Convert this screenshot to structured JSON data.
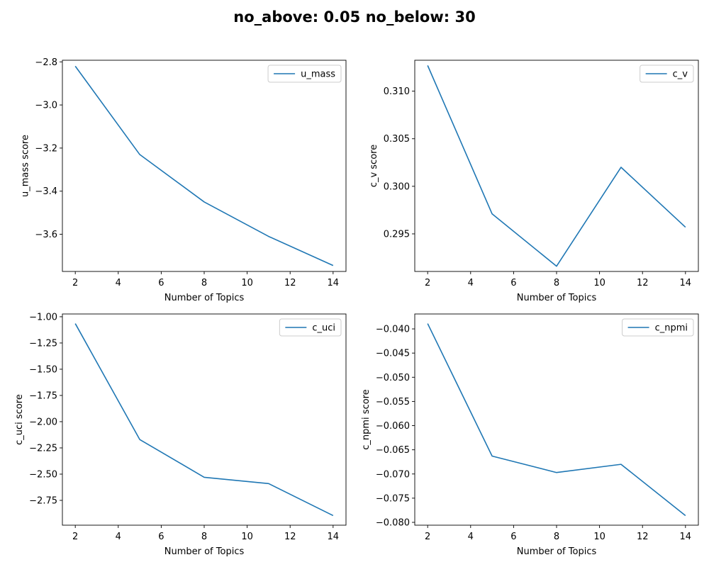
{
  "figure_title": "no_above: 0.05 no_below: 30",
  "chart_data": [
    {
      "type": "line",
      "xlabel": "Number of Topics",
      "ylabel": "u_mass score",
      "x": [
        2,
        5,
        8,
        11,
        14
      ],
      "series": [
        {
          "name": "u_mass",
          "values": [
            -2.82,
            -3.23,
            -3.45,
            -3.61,
            -3.745
          ],
          "color": "#1f77b4"
        }
      ],
      "xlim": [
        1.4,
        14.6
      ],
      "ylim": [
        -3.7725,
        -2.7925
      ],
      "xticks": [
        2,
        4,
        6,
        8,
        10,
        12,
        14
      ],
      "yticks": [
        -3.6,
        -3.4,
        -3.2,
        -3.0,
        -2.8
      ],
      "ytick_labels": [
        "−3.6",
        "−3.4",
        "−3.2",
        "−3.0",
        "−2.8"
      ],
      "grid": false,
      "legend": "top-right"
    },
    {
      "type": "line",
      "xlabel": "Number of Topics",
      "ylabel": "c_v score",
      "x": [
        2,
        5,
        8,
        11,
        14
      ],
      "series": [
        {
          "name": "c_v",
          "values": [
            0.3127,
            0.2971,
            0.2916,
            0.302,
            0.2957
          ],
          "color": "#1f77b4"
        }
      ],
      "xlim": [
        1.4,
        14.6
      ],
      "ylim": [
        0.29105,
        0.31325
      ],
      "xticks": [
        2,
        4,
        6,
        8,
        10,
        12,
        14
      ],
      "yticks": [
        0.295,
        0.3,
        0.305,
        0.31
      ],
      "ytick_labels": [
        "0.295",
        "0.300",
        "0.305",
        "0.310"
      ],
      "grid": false,
      "legend": "top-right"
    },
    {
      "type": "line",
      "xlabel": "Number of Topics",
      "ylabel": "c_uci score",
      "x": [
        2,
        5,
        8,
        11,
        14
      ],
      "series": [
        {
          "name": "c_uci",
          "values": [
            -1.065,
            -2.17,
            -2.53,
            -2.59,
            -2.895
          ],
          "color": "#1f77b4"
        }
      ],
      "xlim": [
        1.4,
        14.6
      ],
      "ylim": [
        -2.9865,
        -0.9735
      ],
      "xticks": [
        2,
        4,
        6,
        8,
        10,
        12,
        14
      ],
      "yticks": [
        -2.75,
        -2.5,
        -2.25,
        -2.0,
        -1.75,
        -1.5,
        -1.25,
        -1.0
      ],
      "ytick_labels": [
        "−2.75",
        "−2.50",
        "−2.25",
        "−2.00",
        "−1.75",
        "−1.50",
        "−1.25",
        "−1.00"
      ],
      "grid": false,
      "legend": "top-right"
    },
    {
      "type": "line",
      "xlabel": "Number of Topics",
      "ylabel": "c_npmi score",
      "x": [
        2,
        5,
        8,
        11,
        14
      ],
      "series": [
        {
          "name": "c_npmi",
          "values": [
            -0.0389,
            -0.0663,
            -0.0697,
            -0.068,
            -0.0786
          ],
          "color": "#1f77b4"
        }
      ],
      "xlim": [
        1.4,
        14.6
      ],
      "ylim": [
        -0.080585,
        -0.036915
      ],
      "xticks": [
        2,
        4,
        6,
        8,
        10,
        12,
        14
      ],
      "yticks": [
        -0.08,
        -0.075,
        -0.07,
        -0.065,
        -0.06,
        -0.055,
        -0.05,
        -0.045,
        -0.04
      ],
      "ytick_labels": [
        "−0.080",
        "−0.075",
        "−0.070",
        "−0.065",
        "−0.060",
        "−0.055",
        "−0.050",
        "−0.045",
        "−0.040"
      ],
      "grid": false,
      "legend": "top-right"
    }
  ]
}
